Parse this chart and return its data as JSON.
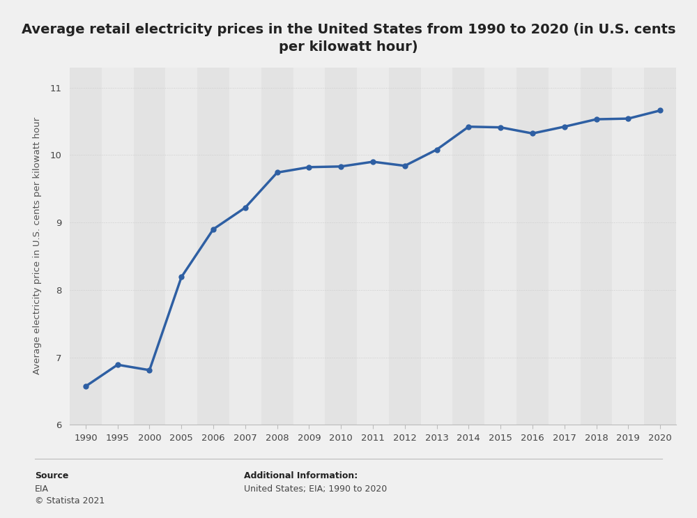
{
  "title": "Average retail electricity prices in the United States from 1990 to 2020 (in U.S. cents\nper kilowatt hour)",
  "ylabel": "Average electricity price in U.S. cents per kilowatt hour",
  "years": [
    1990,
    1995,
    2000,
    2005,
    2006,
    2007,
    2008,
    2009,
    2010,
    2011,
    2012,
    2013,
    2014,
    2015,
    2016,
    2017,
    2018,
    2019,
    2020
  ],
  "values": [
    6.57,
    6.89,
    6.81,
    8.19,
    8.9,
    9.22,
    9.74,
    9.82,
    9.83,
    9.9,
    9.84,
    10.08,
    10.42,
    10.41,
    10.32,
    10.42,
    10.53,
    10.54,
    10.66
  ],
  "line_color": "#2e5fa3",
  "marker_color": "#2e5fa3",
  "bg_color": "#f0f0f0",
  "plot_bg_color": "#f0f0f0",
  "stripe_color_dark": "#e3e3e3",
  "stripe_color_light": "#ebebeb",
  "grid_color": "#cccccc",
  "ylim_min": 6.0,
  "ylim_max": 11.3,
  "yticks": [
    6,
    7,
    8,
    9,
    10,
    11
  ],
  "source_label": "Source",
  "source_line1": "EIA",
  "source_line2": "© Statista 2021",
  "additional_label": "Additional Information:",
  "additional_line1": "United States; EIA; 1990 to 2020",
  "title_fontsize": 14,
  "axis_label_fontsize": 9.5,
  "tick_fontsize": 9.5,
  "footer_fontsize": 9,
  "line_width": 2.5,
  "marker_size": 5
}
